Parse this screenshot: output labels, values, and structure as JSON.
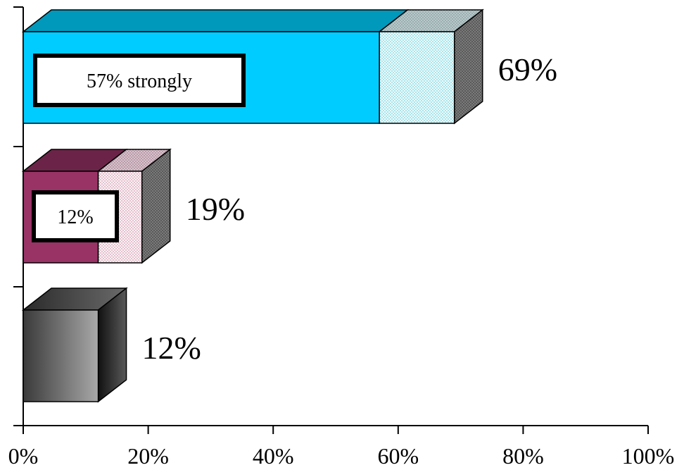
{
  "chart_data": {
    "type": "bar",
    "orientation": "horizontal",
    "style": "3d-stacked",
    "xlim": [
      0,
      100
    ],
    "x_ticks": [
      "0%",
      "20%",
      "40%",
      "60%",
      "80%",
      "100%"
    ],
    "grid": false,
    "legend": "none",
    "bars": [
      {
        "total": 69,
        "total_label": "69%",
        "segments": [
          {
            "value": 57,
            "fill": "#00ccff",
            "pattern": "solid"
          },
          {
            "value": 12,
            "fill": "#ccffff",
            "pattern": "dotted"
          }
        ],
        "inner_label": "57% strongly",
        "top_color": "#0099bb",
        "side_color": "#6f8080"
      },
      {
        "total": 19,
        "total_label": "19%",
        "segments": [
          {
            "value": 12,
            "fill": "#993366",
            "pattern": "solid"
          },
          {
            "value": 7,
            "fill": "#ffe6f0",
            "pattern": "dotted"
          }
        ],
        "inner_label": "12%",
        "top_color": "#6b2447",
        "side_color": "#8a8a8a"
      },
      {
        "total": 12,
        "total_label": "12%",
        "segments": [
          {
            "value": 12,
            "fill": "#666666",
            "pattern": "gradient"
          }
        ],
        "inner_label": "",
        "top_color": "#444444",
        "side_color": "#222222"
      }
    ]
  }
}
